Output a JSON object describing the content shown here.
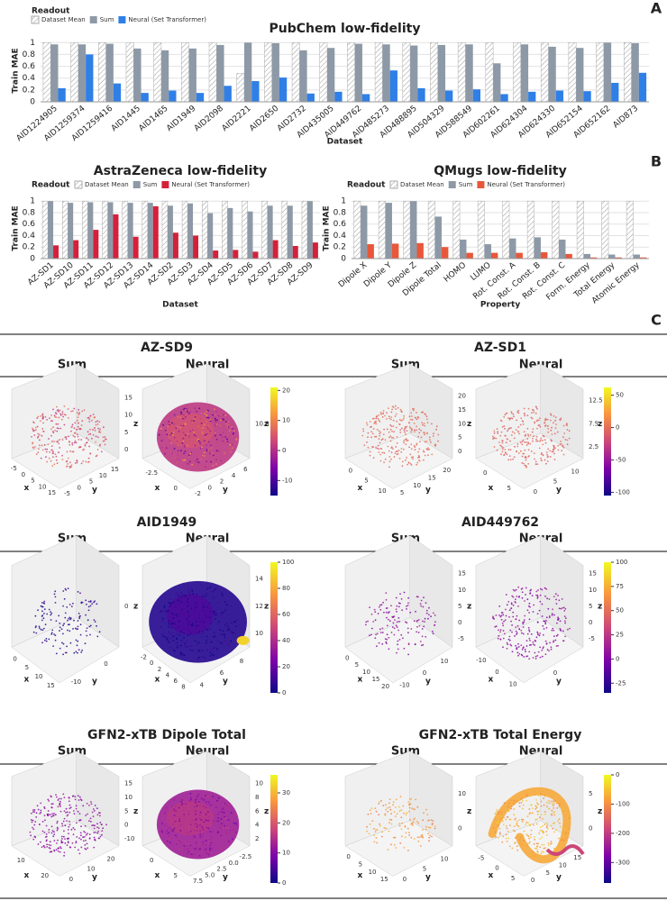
{
  "panel_a": {
    "label": "A",
    "chart_data": {
      "type": "bar",
      "title": "PubChem low-fidelity",
      "xlabel": "Dataset",
      "ylabel": "Train MAE",
      "legend_title": "Readout",
      "categories": [
        "AID1224905",
        "AID1259374",
        "AID1259416",
        "AID1445",
        "AID1465",
        "AID1949",
        "AID2098",
        "AID2221",
        "AID2650",
        "AID2732",
        "AID435005",
        "AID449762",
        "AID485273",
        "AID488895",
        "AID504329",
        "AID588549",
        "AID602261",
        "AID624304",
        "AID624330",
        "AID652154",
        "AID652162",
        "AID873"
      ],
      "series": [
        {
          "name": "Dataset Mean",
          "color": "#ffffff",
          "hatch": true,
          "values": [
            1,
            1,
            1,
            1,
            1,
            1,
            1,
            0.48,
            1,
            1,
            1,
            1,
            1,
            1,
            1,
            1,
            1,
            1,
            1,
            1,
            1,
            1
          ]
        },
        {
          "name": "Sum",
          "color": "#8d99a6",
          "values": [
            0.97,
            0.97,
            0.98,
            0.9,
            0.87,
            0.9,
            0.96,
            1.0,
            0.99,
            0.87,
            0.91,
            0.98,
            0.97,
            0.95,
            0.96,
            0.97,
            0.65,
            0.97,
            0.93,
            0.91,
            1.0,
            0.99
          ]
        },
        {
          "name": "Neural (Set Transformer)",
          "color": "#2f7fe6",
          "values": [
            0.23,
            0.8,
            0.31,
            0.15,
            0.19,
            0.15,
            0.27,
            0.35,
            0.41,
            0.14,
            0.17,
            0.13,
            0.53,
            0.23,
            0.19,
            0.21,
            0.13,
            0.17,
            0.19,
            0.18,
            0.32,
            0.49
          ]
        }
      ],
      "ylim": [
        0,
        1.05
      ],
      "yticks": [
        0,
        0.2,
        0.4,
        0.6,
        0.8,
        1
      ]
    }
  },
  "panel_b": {
    "label": "B",
    "charts": [
      {
        "type": "bar",
        "title": "AstraZeneca low-fidelity",
        "xlabel": "Dataset",
        "ylabel": "Train MAE",
        "legend_title": "Readout",
        "categories": [
          "AZ-SD1",
          "AZ-SD10",
          "AZ-SD11",
          "AZ-SD12",
          "AZ-SD13",
          "AZ-SD14",
          "AZ-SD2",
          "AZ-SD3",
          "AZ-SD4",
          "AZ-SD5",
          "AZ-SD6",
          "AZ-SD7",
          "AZ-SD8",
          "AZ-SD9"
        ],
        "series": [
          {
            "name": "Dataset Mean",
            "color": "#ffffff",
            "hatch": true,
            "values": [
              1,
              1,
              1,
              1,
              1,
              1,
              1,
              1,
              1,
              1,
              1,
              1,
              1,
              1
            ]
          },
          {
            "name": "Sum",
            "color": "#8d99a6",
            "values": [
              1.0,
              0.97,
              0.98,
              0.98,
              0.97,
              0.97,
              0.92,
              0.96,
              0.79,
              0.88,
              0.82,
              0.92,
              0.92,
              1.0
            ]
          },
          {
            "name": "Neural (Set Transformer)",
            "color": "#d4203a",
            "values": [
              0.23,
              0.32,
              0.5,
              0.77,
              0.38,
              0.91,
              0.45,
              0.4,
              0.14,
              0.15,
              0.12,
              0.32,
              0.22,
              0.28
            ]
          }
        ],
        "ylim": [
          0,
          1.05
        ],
        "yticks": [
          0,
          0.2,
          0.4,
          0.6,
          0.8,
          1
        ]
      },
      {
        "type": "bar",
        "title": "QMugs low-fidelity",
        "xlabel": "Property",
        "ylabel": "Train MAE",
        "legend_title": "Readout",
        "categories": [
          "Dipole X",
          "Dipole Y",
          "Dipole Z",
          "Dipole Total",
          "HOMO",
          "LUMO",
          "Rot. Const. A",
          "Rot. Const. B",
          "Rot. Const. C",
          "Form. Energy",
          "Total Energy",
          "Atomic Energy"
        ],
        "series": [
          {
            "name": "Dataset Mean",
            "color": "#ffffff",
            "hatch": true,
            "values": [
              1,
              1,
              1,
              1,
              1,
              1,
              1,
              1,
              1,
              1,
              1,
              1
            ]
          },
          {
            "name": "Sum",
            "color": "#8d99a6",
            "values": [
              0.92,
              0.97,
              1.0,
              0.73,
              0.33,
              0.25,
              0.35,
              0.37,
              0.33,
              0.08,
              0.07,
              0.07
            ]
          },
          {
            "name": "Neural (Set Transformer)",
            "color": "#e8573a",
            "values": [
              0.25,
              0.26,
              0.27,
              0.2,
              0.1,
              0.1,
              0.1,
              0.11,
              0.08,
              0.02,
              0.02,
              0.02
            ]
          }
        ],
        "ylim": [
          0,
          1.05
        ],
        "yticks": [
          0,
          0.2,
          0.4,
          0.6,
          0.8,
          1
        ]
      }
    ]
  },
  "panel_c": {
    "label": "C",
    "rows": [
      {
        "groups": [
          {
            "title": "AZ-SD9",
            "sum_label": "Sum",
            "neural_label": "Neural",
            "clim": [
              -15,
              21
            ],
            "colorbar_ticks": [
              -10,
              0,
              10,
              20
            ],
            "sum": {
              "x_label": "x",
              "y_label": "y",
              "z_label": "z",
              "x_ticks": [
                "-5",
                "0",
                "5",
                "10",
                "15"
              ],
              "y_ticks": [
                "-5",
                "0",
                "5",
                "10",
                "15"
              ],
              "z_ticks": [
                "0",
                "5",
                "10",
                "15"
              ]
            },
            "neural": {
              "x_label": "x",
              "y_label": "y",
              "z_label": "z",
              "x_ticks": [
                "-2.5",
                "0"
              ],
              "y_ticks": [
                "-2",
                "0",
                "2",
                "4",
                "6"
              ],
              "z_ticks": [
                "10.0"
              ]
            }
          },
          {
            "title": "AZ-SD1",
            "sum_label": "Sum",
            "neural_label": "Neural",
            "clim": [
              -105,
              62
            ],
            "colorbar_ticks": [
              -100,
              -50,
              0,
              50
            ],
            "sum": {
              "x_label": "x",
              "y_label": "y",
              "z_label": "z",
              "x_ticks": [
                "0",
                "5",
                "10"
              ],
              "y_ticks": [
                "5",
                "10",
                "15",
                "20"
              ],
              "z_ticks": [
                "0",
                "5",
                "10",
                "15",
                "20"
              ]
            },
            "neural": {
              "x_label": "x",
              "y_label": "y",
              "z_label": "z",
              "x_ticks": [
                "0",
                "5"
              ],
              "y_ticks": [
                "0",
                "5",
                "10"
              ],
              "z_ticks": [
                "2.5",
                "7.5",
                "12.5"
              ]
            }
          }
        ]
      },
      {
        "groups": [
          {
            "title": "AID1949",
            "sum_label": "Sum",
            "neural_label": "Neural",
            "clim": [
              0,
              100
            ],
            "colorbar_ticks": [
              0,
              20,
              40,
              60,
              80,
              100
            ],
            "sum": {
              "x_label": "x",
              "y_label": "y",
              "z_label": "z",
              "x_ticks": [
                "0",
                "5",
                "10",
                "15"
              ],
              "y_ticks": [
                "-10",
                "0"
              ],
              "z_ticks": [
                "0"
              ]
            },
            "neural": {
              "x_label": "x",
              "y_label": "y",
              "z_label": "z",
              "x_ticks": [
                "-2",
                "0",
                "2",
                "4",
                "6",
                "8"
              ],
              "y_ticks": [
                "4",
                "6",
                "8"
              ],
              "z_ticks": [
                "10",
                "12",
                "14"
              ]
            }
          },
          {
            "title": "AID449762",
            "sum_label": "Sum",
            "neural_label": "Neural",
            "clim": [
              -35,
              100
            ],
            "colorbar_ticks": [
              -25,
              0,
              25,
              50,
              75,
              100
            ],
            "sum": {
              "x_label": "x",
              "y_label": "y",
              "z_label": "z",
              "x_ticks": [
                "0",
                "5",
                "10",
                "15",
                "20"
              ],
              "y_ticks": [
                "-10",
                "0",
                "10"
              ],
              "z_ticks": [
                "-5",
                "0",
                "5",
                "10",
                "15"
              ]
            },
            "neural": {
              "x_label": "x",
              "y_label": "y",
              "z_label": "z",
              "x_ticks": [
                "-10",
                "0",
                "10"
              ],
              "y_ticks": [
                "0"
              ],
              "z_ticks": [
                "-5",
                "0",
                "5",
                "10",
                "15"
              ]
            }
          }
        ]
      },
      {
        "groups": [
          {
            "title": "GFN2-xTB Dipole Total",
            "sum_label": "Sum",
            "neural_label": "Neural",
            "clim": [
              0,
              36
            ],
            "colorbar_ticks": [
              0,
              10,
              20,
              30
            ],
            "sum": {
              "x_label": "x",
              "y_label": "y",
              "z_label": "z",
              "x_ticks": [
                "10",
                "20"
              ],
              "y_ticks": [
                "0",
                "10",
                "20"
              ],
              "z_ticks": [
                "-10",
                "0",
                "5",
                "10",
                "15"
              ]
            },
            "neural": {
              "x_label": "x",
              "y_label": "y",
              "z_label": "z",
              "x_ticks": [
                "0",
                "5"
              ],
              "y_ticks": [
                "7.5",
                "5.0",
                "2.5",
                "0.0",
                "-2.5"
              ],
              "z_ticks": [
                "2",
                "4",
                "6",
                "8",
                "10"
              ]
            }
          },
          {
            "title": "GFN2-xTB Total Energy",
            "sum_label": "Sum",
            "neural_label": "Neural",
            "clim": [
              -370,
              0
            ],
            "colorbar_ticks": [
              -300,
              -200,
              -100,
              0
            ],
            "sum": {
              "x_label": "x",
              "y_label": "y",
              "z_label": "z",
              "x_ticks": [
                "0",
                "5",
                "10",
                "15"
              ],
              "y_ticks": [
                "0",
                "5",
                "10"
              ],
              "z_ticks": [
                "0",
                "10"
              ]
            },
            "neural": {
              "x_label": "x",
              "y_label": "y",
              "z_label": "z",
              "x_ticks": [
                "-5",
                "0",
                "5"
              ],
              "y_ticks": [
                "0",
                "5",
                "10",
                "15"
              ],
              "z_ticks": [
                "0",
                "5"
              ]
            }
          }
        ]
      }
    ]
  }
}
